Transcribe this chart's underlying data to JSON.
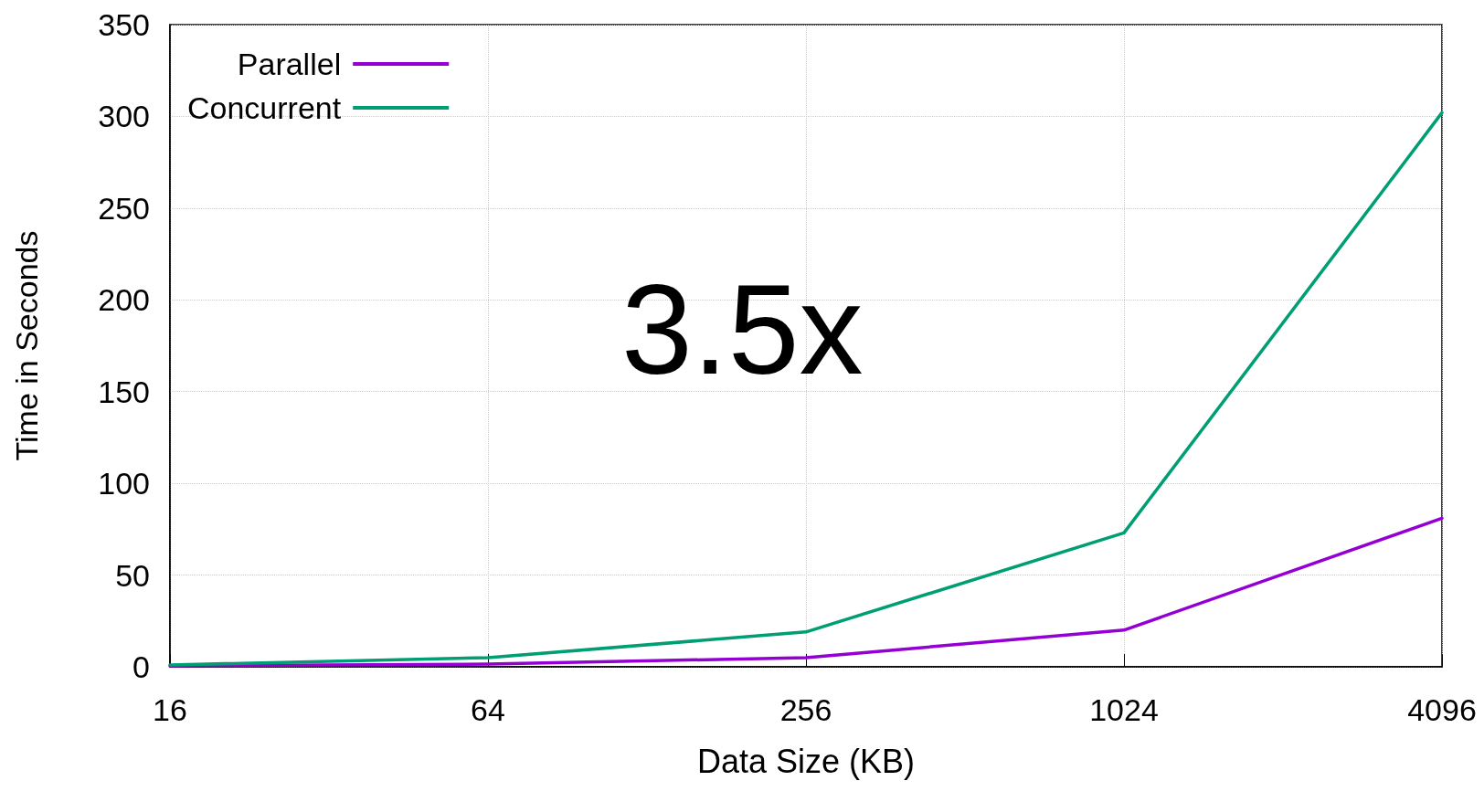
{
  "chart_data": {
    "type": "line",
    "xlabel": "Data Size (KB)",
    "ylabel": "Time in Seconds",
    "categories": [
      "16",
      "64",
      "256",
      "1024",
      "4096"
    ],
    "series": [
      {
        "name": "Parallel",
        "color": "#9400d3",
        "values": [
          0.5,
          1.5,
          5,
          20,
          81
        ]
      },
      {
        "name": "Concurrent",
        "color": "#009e73",
        "values": [
          1,
          5,
          19,
          73,
          302
        ]
      }
    ],
    "ylim": [
      0,
      350
    ],
    "yticks": [
      0,
      50,
      100,
      150,
      200,
      250,
      300,
      350
    ],
    "grid": true,
    "legend": "top left",
    "marker": "none",
    "line_style": "solid",
    "annotations": [
      "3.5x"
    ]
  }
}
